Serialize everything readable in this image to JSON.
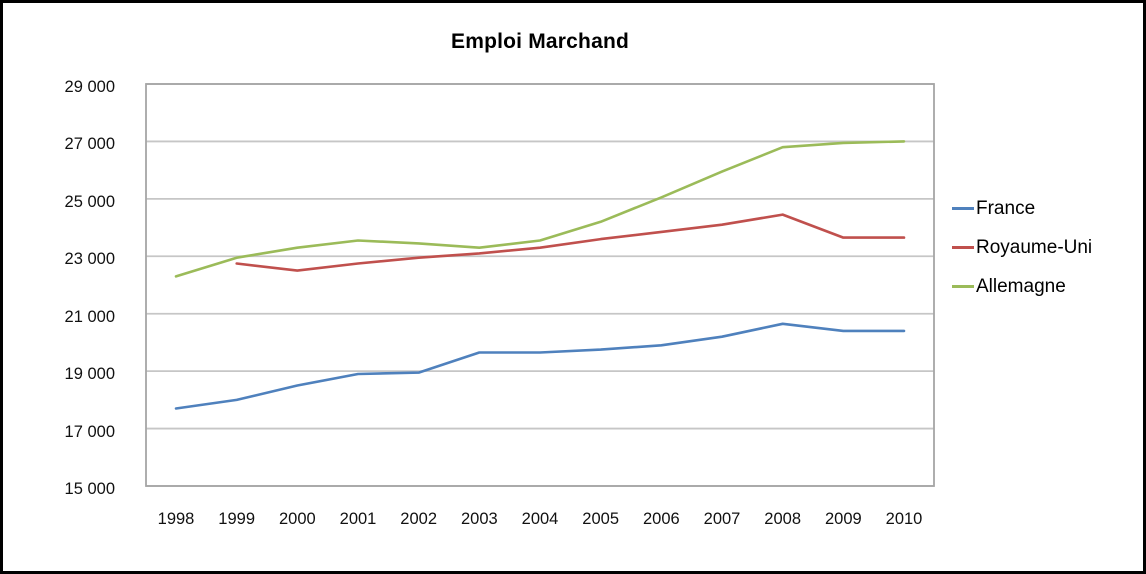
{
  "chart_data": {
    "type": "line",
    "title": "Emploi Marchand",
    "categories": [
      "1998",
      "1999",
      "2000",
      "2001",
      "2002",
      "2003",
      "2004",
      "2005",
      "2006",
      "2007",
      "2008",
      "2009",
      "2010"
    ],
    "series": [
      {
        "name": "France",
        "color": "#4F81BD",
        "values": [
          17700,
          18000,
          18500,
          18900,
          18950,
          19650,
          19650,
          19750,
          19900,
          20200,
          20650,
          20400,
          20400
        ]
      },
      {
        "name": "Royaume-Uni",
        "color": "#C0504D",
        "values": [
          null,
          22750,
          22500,
          22750,
          22950,
          23100,
          23300,
          23600,
          23850,
          24100,
          24450,
          23650,
          23650
        ]
      },
      {
        "name": "Allemagne",
        "color": "#9BBB59",
        "values": [
          22300,
          22950,
          23300,
          23550,
          23450,
          23300,
          23550,
          24200,
          25050,
          25950,
          26800,
          26950,
          27000
        ]
      }
    ],
    "ylim": [
      15000,
      29000
    ],
    "ytick_values": [
      15000,
      17000,
      19000,
      21000,
      23000,
      25000,
      27000,
      29000
    ],
    "ytick_labels": [
      "15 000",
      "17 000",
      "19 000",
      "21 000",
      "23 000",
      "25 000",
      "27 000",
      "29 000"
    ],
    "grid": true,
    "legend_position": "right"
  },
  "colors": {
    "gridline": "#C6C6C6",
    "plot_border": "#A6A6A6",
    "text": "#111111",
    "frame": "#000000"
  }
}
